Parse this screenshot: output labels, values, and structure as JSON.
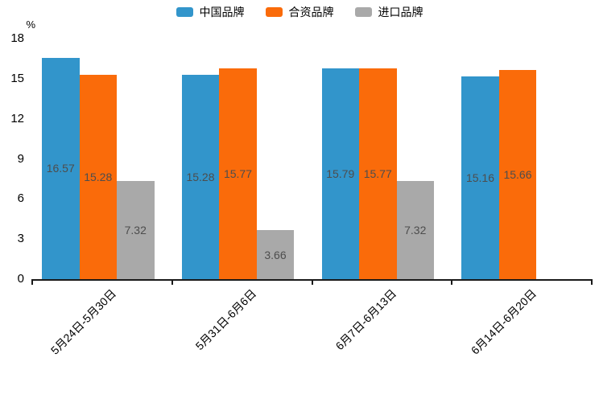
{
  "legend": {
    "items": [
      {
        "label": "中国品牌",
        "color": "#3295cb"
      },
      {
        "label": "合资品牌",
        "color": "#fa6b0a"
      },
      {
        "label": "进口品牌",
        "color": "#a9a9a9"
      }
    ]
  },
  "chart_data": {
    "type": "bar",
    "title": "",
    "ylabel": "%",
    "categories": [
      "5月24日-5月30日",
      "5月31日-6月6日",
      "6月7日-6月13日",
      "6月14日-6月20日"
    ],
    "series": [
      {
        "name": "中国品牌",
        "color": "#3295cb",
        "values": [
          16.57,
          15.28,
          15.79,
          15.16
        ]
      },
      {
        "name": "合资品牌",
        "color": "#fa6b0a",
        "values": [
          15.28,
          15.77,
          15.77,
          15.66
        ]
      },
      {
        "name": "进口品牌",
        "color": "#a9a9a9",
        "values": [
          7.32,
          3.66,
          7.32,
          null
        ]
      }
    ],
    "value_labels": [
      "16.57",
      "15.28",
      "7.32",
      "15.28",
      "15.77",
      "3.66",
      "15.79",
      "15.77",
      "7.32",
      "15.16",
      "15.66"
    ],
    "yticks": [
      0,
      3,
      6,
      9,
      12,
      15,
      18
    ],
    "ylim": [
      0,
      18
    ],
    "grid": false,
    "legend_position": "top",
    "value_label_color": "#4d4d4d",
    "axis_color": "#1a1a1a"
  }
}
